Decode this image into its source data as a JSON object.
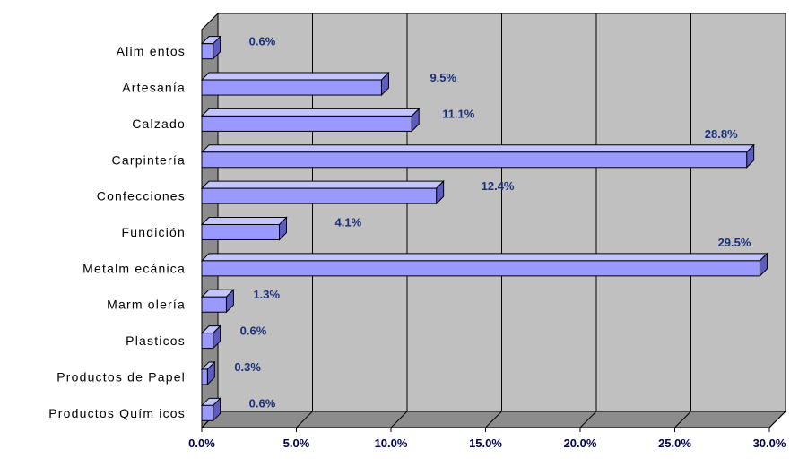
{
  "chart_data": {
    "type": "bar",
    "orientation": "horizontal",
    "style": "3d",
    "categories": [
      "Alim entos",
      "Artesanía",
      "Calzado",
      "Carpintería",
      "Confecciones",
      "Fundición",
      "Metalm ecánica",
      "Marm olería",
      "Plasticos",
      "Productos de Papel",
      "Productos Quím icos"
    ],
    "values": [
      0.6,
      9.5,
      11.1,
      28.8,
      12.4,
      4.1,
      29.5,
      1.3,
      0.6,
      0.3,
      0.6
    ],
    "data_labels": [
      "0.6%",
      "9.5%",
      "11.1%",
      "28.8%",
      "12.4%",
      "4.1%",
      "29.5%",
      "1.3%",
      "0.6%",
      "0.3%",
      "0.6%"
    ],
    "x_ticks": [
      "0.0%",
      "5.0%",
      "10.0%",
      "15.0%",
      "20.0%",
      "25.0%",
      "30.0%"
    ],
    "xlim": [
      0,
      30
    ],
    "grid": true,
    "legend": "none",
    "colors": {
      "bar_front": "#9999ff",
      "bar_top": "#c4c4ff",
      "bar_side": "#5c5cc2",
      "bar_outline": "#000000",
      "wall": "#c0c0c0",
      "floor": "#8c8c8c",
      "gridline": "#000000",
      "data_label": "#1a2f7a",
      "tick_label": "#00004d"
    }
  }
}
